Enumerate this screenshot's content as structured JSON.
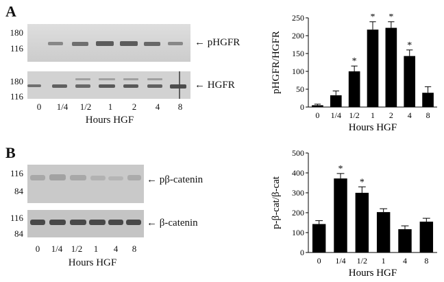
{
  "panels": [
    {
      "letter": "A",
      "western": {
        "lanes": [
          "0",
          "1/4",
          "1/2",
          "1",
          "2",
          "4",
          "8"
        ],
        "blot_top_label": "← pHGFR",
        "blot_bottom_label": "← HGFR",
        "mw_top": [
          "180",
          "116"
        ],
        "mw_bottom": [
          "180",
          "116"
        ],
        "xlabel": "Hours HGF"
      }
    },
    {
      "letter": "B",
      "western": {
        "lanes": [
          "0",
          "1/4",
          "1/2",
          "1",
          "4",
          "8"
        ],
        "blot_top_label": "← pβ-catenin",
        "blot_bottom_label": "← β-catenin",
        "mw_top": [
          "116",
          "84"
        ],
        "mw_bottom": [
          "116",
          "84"
        ],
        "xlabel": "Hours HGF"
      }
    }
  ],
  "chart_data": [
    {
      "type": "bar",
      "categories": [
        "0",
        "1/4",
        "1/2",
        "1",
        "2",
        "4",
        "8"
      ],
      "values": [
        5,
        33,
        100,
        217,
        222,
        143,
        40
      ],
      "errors": [
        3,
        12,
        15,
        22,
        17,
        17,
        17
      ],
      "significant": [
        false,
        false,
        true,
        true,
        true,
        true,
        false
      ],
      "sig_marker": "*",
      "ylabel": "pHGFR/HGFR",
      "xlabel": "Hours HGF",
      "ylim": [
        0,
        250
      ],
      "yticks": [
        0,
        50,
        100,
        150,
        200,
        250
      ],
      "bar_color": "#000000"
    },
    {
      "type": "bar",
      "categories": [
        "0",
        "1/4",
        "1/2",
        "1",
        "4",
        "8"
      ],
      "values": [
        143,
        372,
        300,
        203,
        117,
        155
      ],
      "errors": [
        17,
        25,
        30,
        17,
        17,
        17
      ],
      "significant": [
        false,
        true,
        true,
        false,
        false,
        false
      ],
      "sig_marker": "*",
      "ylabel": "p-β-cat/β-cat",
      "xlabel": "Hours HGF",
      "ylim": [
        0,
        500
      ],
      "yticks": [
        0,
        100,
        200,
        300,
        400,
        500
      ],
      "bar_color": "#000000"
    }
  ]
}
